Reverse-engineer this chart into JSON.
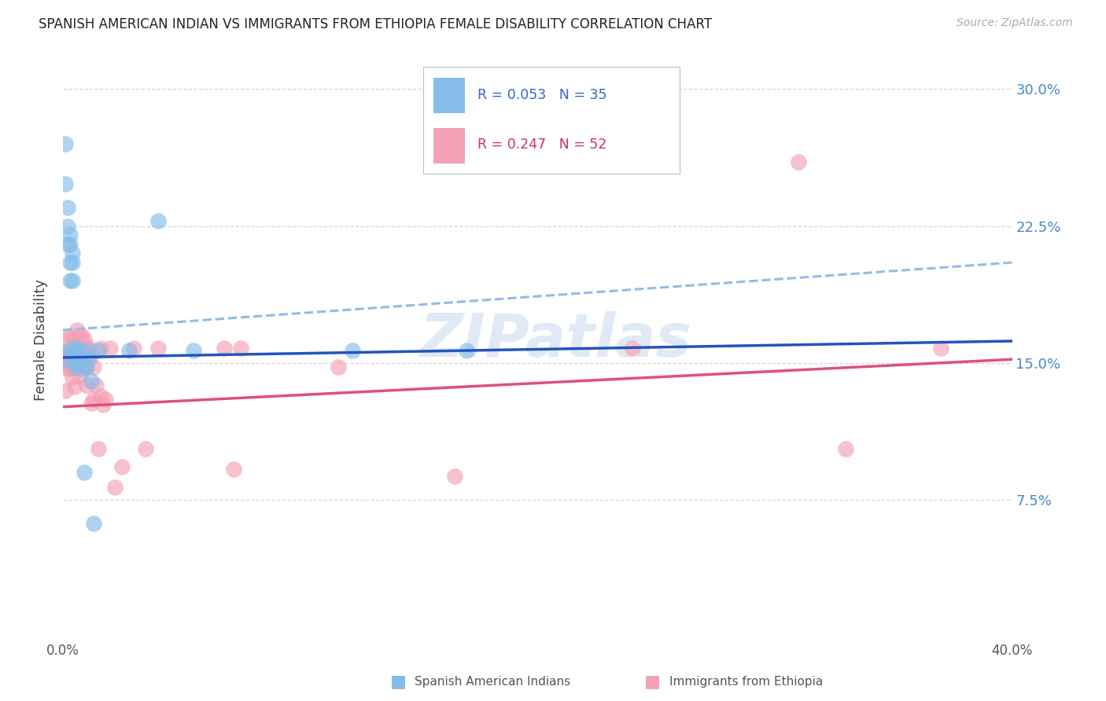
{
  "title": "SPANISH AMERICAN INDIAN VS IMMIGRANTS FROM ETHIOPIA FEMALE DISABILITY CORRELATION CHART",
  "source": "Source: ZipAtlas.com",
  "ylabel": "Female Disability",
  "ytick_labels": [
    "30.0%",
    "22.5%",
    "15.0%",
    "7.5%"
  ],
  "ytick_values": [
    0.3,
    0.225,
    0.15,
    0.075
  ],
  "xlim": [
    0.0,
    0.4
  ],
  "ylim": [
    0.0,
    0.325
  ],
  "blue_color": "#85bce8",
  "pink_color": "#f4a0b5",
  "blue_line_color": "#2255bb",
  "pink_line_color": "#e0507a",
  "blue_dashed_color": "#90bce8",
  "watermark": "ZIPatlas",
  "blue_x": [
    0.001,
    0.001,
    0.002,
    0.002,
    0.002,
    0.003,
    0.003,
    0.003,
    0.003,
    0.004,
    0.004,
    0.004,
    0.005,
    0.005,
    0.005,
    0.006,
    0.006,
    0.007,
    0.008,
    0.008,
    0.009,
    0.01,
    0.01,
    0.011,
    0.012,
    0.013,
    0.015,
    0.028,
    0.04,
    0.055,
    0.122,
    0.17,
    0.002,
    0.001,
    0.003
  ],
  "blue_y": [
    0.27,
    0.248,
    0.235,
    0.225,
    0.215,
    0.22,
    0.215,
    0.205,
    0.195,
    0.21,
    0.205,
    0.195,
    0.158,
    0.152,
    0.148,
    0.158,
    0.15,
    0.155,
    0.153,
    0.147,
    0.09,
    0.157,
    0.148,
    0.152,
    0.14,
    0.062,
    0.157,
    0.157,
    0.228,
    0.157,
    0.157,
    0.157,
    0.157,
    0.152,
    0.155
  ],
  "pink_x": [
    0.001,
    0.001,
    0.001,
    0.002,
    0.002,
    0.002,
    0.003,
    0.003,
    0.004,
    0.004,
    0.005,
    0.005,
    0.005,
    0.006,
    0.006,
    0.007,
    0.007,
    0.008,
    0.008,
    0.009,
    0.009,
    0.01,
    0.01,
    0.011,
    0.012,
    0.012,
    0.013,
    0.014,
    0.015,
    0.016,
    0.016,
    0.017,
    0.018,
    0.02,
    0.022,
    0.025,
    0.03,
    0.035,
    0.04,
    0.068,
    0.072,
    0.075,
    0.116,
    0.165,
    0.24,
    0.31,
    0.33,
    0.37,
    0.003,
    0.006,
    0.01,
    0.013
  ],
  "pink_y": [
    0.155,
    0.148,
    0.135,
    0.163,
    0.155,
    0.147,
    0.157,
    0.147,
    0.16,
    0.142,
    0.163,
    0.153,
    0.137,
    0.168,
    0.158,
    0.163,
    0.143,
    0.165,
    0.158,
    0.163,
    0.148,
    0.158,
    0.148,
    0.158,
    0.155,
    0.128,
    0.13,
    0.138,
    0.103,
    0.158,
    0.132,
    0.127,
    0.13,
    0.158,
    0.082,
    0.093,
    0.158,
    0.103,
    0.158,
    0.158,
    0.092,
    0.158,
    0.148,
    0.088,
    0.158,
    0.26,
    0.103,
    0.158,
    0.165,
    0.16,
    0.138,
    0.148
  ],
  "blue_trend_x": [
    0.0,
    0.4
  ],
  "blue_trend_y": [
    0.153,
    0.162
  ],
  "blue_dashed_trend_x": [
    0.0,
    0.4
  ],
  "blue_dashed_trend_y": [
    0.168,
    0.205
  ],
  "pink_trend_x": [
    0.0,
    0.4
  ],
  "pink_trend_y": [
    0.126,
    0.152
  ]
}
